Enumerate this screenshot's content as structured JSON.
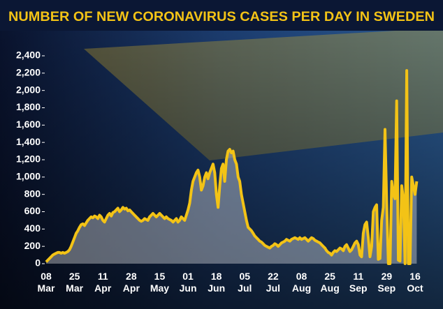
{
  "chart_data": {
    "type": "area",
    "title": "NUMBER OF NEW CORONAVIRUS CASES PER DAY IN SWEDEN",
    "color": "#f3c316",
    "ylim": [
      0,
      2400
    ],
    "yticks": [
      0,
      200,
      400,
      600,
      800,
      {
        "value": 1000,
        "label": "1,000"
      },
      {
        "value": 1200,
        "label": "1,200"
      },
      {
        "value": 1400,
        "label": "1,400"
      },
      {
        "value": 1600,
        "label": "1,600"
      },
      {
        "value": 1800,
        "label": "1,800"
      },
      {
        "value": 2000,
        "label": "2,000"
      },
      {
        "value": 2200,
        "label": "2,200"
      },
      {
        "value": 2400,
        "label": "2,400"
      }
    ],
    "categories": [
      "08 Mar",
      null,
      null,
      null,
      null,
      null,
      null,
      null,
      null,
      null,
      null,
      null,
      null,
      null,
      null,
      null,
      null,
      "25 Mar",
      null,
      null,
      null,
      null,
      null,
      null,
      null,
      null,
      null,
      null,
      null,
      null,
      null,
      null,
      null,
      null,
      "11 Apr",
      null,
      null,
      null,
      null,
      null,
      null,
      null,
      null,
      null,
      null,
      null,
      null,
      null,
      null,
      null,
      null,
      "28 Apr",
      null,
      null,
      null,
      null,
      null,
      null,
      null,
      null,
      null,
      null,
      null,
      null,
      null,
      null,
      null,
      null,
      "15 May",
      null,
      null,
      null,
      null,
      null,
      null,
      null,
      null,
      null,
      null,
      null,
      null,
      null,
      null,
      null,
      null,
      "01 Jun",
      null,
      null,
      null,
      null,
      null,
      null,
      null,
      null,
      null,
      null,
      null,
      null,
      null,
      null,
      null,
      null,
      "18 Jun",
      null,
      null,
      null,
      null,
      null,
      null,
      null,
      null,
      null,
      null,
      null,
      null,
      null,
      null,
      null,
      null,
      "05 Jul",
      null,
      null,
      null,
      null,
      null,
      null,
      null,
      null,
      null,
      null,
      null,
      null,
      null,
      null,
      null,
      null,
      "22 Jul",
      null,
      null,
      null,
      null,
      null,
      null,
      null,
      null,
      null,
      null,
      null,
      null,
      null,
      null,
      null,
      null,
      "08 Aug",
      null,
      null,
      null,
      null,
      null,
      null,
      null,
      null,
      null,
      null,
      null,
      null,
      null,
      null,
      null,
      null,
      "25 Aug",
      null,
      null,
      null,
      null,
      null,
      null,
      null,
      null,
      null,
      null,
      null,
      null,
      null,
      null,
      null,
      null,
      "11 Sep",
      null,
      null,
      null,
      null,
      null,
      null,
      null,
      null,
      null,
      null,
      null,
      null,
      null,
      null,
      null,
      null,
      "29 Sep",
      null,
      null,
      null,
      null,
      null,
      null,
      null,
      null,
      null,
      null,
      null,
      null,
      null,
      null,
      null,
      null,
      "16 Oct",
      null
    ],
    "values": [
      20,
      40,
      60,
      80,
      100,
      110,
      120,
      130,
      130,
      120,
      130,
      120,
      130,
      140,
      160,
      200,
      250,
      300,
      350,
      380,
      420,
      450,
      460,
      440,
      470,
      500,
      520,
      540,
      530,
      550,
      540,
      520,
      560,
      540,
      500,
      480,
      520,
      560,
      580,
      550,
      590,
      600,
      620,
      640,
      600,
      620,
      650,
      630,
      640,
      610,
      620,
      600,
      580,
      560,
      540,
      520,
      500,
      490,
      500,
      520,
      510,
      500,
      540,
      560,
      580,
      560,
      540,
      560,
      580,
      560,
      540,
      520,
      540,
      520,
      510,
      500,
      480,
      500,
      520,
      480,
      500,
      540,
      520,
      500,
      560,
      620,
      700,
      850,
      950,
      1000,
      1050,
      1080,
      1000,
      850,
      900,
      1000,
      1050,
      980,
      1050,
      1100,
      1150,
      1050,
      800,
      650,
      900,
      1100,
      1150,
      950,
      1200,
      1300,
      1320,
      1280,
      1300,
      1200,
      1150,
      1000,
      950,
      800,
      700,
      600,
      500,
      420,
      400,
      380,
      350,
      320,
      300,
      280,
      260,
      250,
      230,
      210,
      200,
      190,
      180,
      200,
      210,
      230,
      220,
      200,
      220,
      240,
      250,
      260,
      280,
      270,
      260,
      280,
      290,
      300,
      290,
      280,
      300,
      280,
      290,
      300,
      280,
      260,
      280,
      300,
      290,
      270,
      260,
      250,
      240,
      220,
      200,
      180,
      150,
      130,
      120,
      100,
      130,
      150,
      140,
      160,
      180,
      170,
      150,
      200,
      220,
      180,
      140,
      160,
      200,
      240,
      260,
      220,
      100,
      80,
      350,
      450,
      480,
      300,
      80,
      200,
      600,
      650,
      680,
      50,
      60,
      500,
      650,
      1550,
      700,
      0,
      0,
      950,
      800,
      750,
      1880,
      40,
      30,
      900,
      750,
      0,
      2230,
      0,
      0,
      1000,
      900,
      800,
      950
    ]
  }
}
